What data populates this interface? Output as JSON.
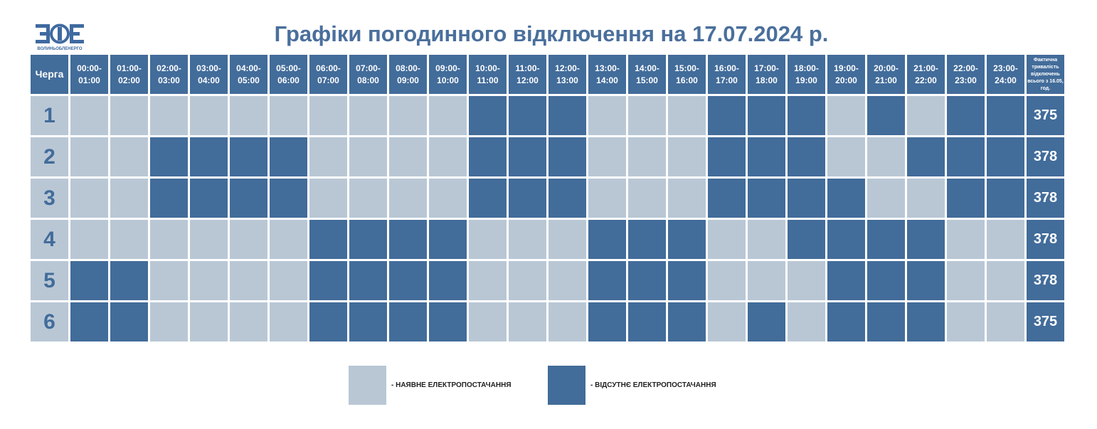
{
  "header": {
    "title": "Графіки погодинного відключення на 17.07.2024 р.",
    "logo_text": "ВОЛИНЬОБЛЕНЕРГО"
  },
  "colors": {
    "power_on": "#b9c7d5",
    "power_off": "#426c9a",
    "accent": "#4a6f9c"
  },
  "table": {
    "queue_header": "Черга",
    "total_header": "Фактична тривалість відключень всього з 16.05, год.",
    "hours": [
      "00:00-01:00",
      "01:00-02:00",
      "02:00-03:00",
      "03:00-04:00",
      "04:00-05:00",
      "05:00-06:00",
      "06:00-07:00",
      "07:00-08:00",
      "08:00-09:00",
      "09:00-10:00",
      "10:00-11:00",
      "11:00-12:00",
      "12:00-13:00",
      "13:00-14:00",
      "14:00-15:00",
      "15:00-16:00",
      "16:00-17:00",
      "17:00-18:00",
      "18:00-19:00",
      "19:00-20:00",
      "20:00-21:00",
      "21:00-22:00",
      "22:00-23:00",
      "23:00-24:00"
    ],
    "rows": [
      {
        "queue": "1",
        "total": "375",
        "off": [
          0,
          0,
          0,
          0,
          0,
          0,
          0,
          0,
          0,
          0,
          1,
          1,
          1,
          0,
          0,
          0,
          1,
          1,
          1,
          0,
          1,
          0,
          1,
          1
        ]
      },
      {
        "queue": "2",
        "total": "378",
        "off": [
          0,
          0,
          1,
          1,
          1,
          1,
          0,
          0,
          0,
          0,
          1,
          1,
          1,
          0,
          0,
          0,
          1,
          1,
          1,
          0,
          0,
          1,
          1,
          1
        ]
      },
      {
        "queue": "3",
        "total": "378",
        "off": [
          0,
          0,
          1,
          1,
          1,
          1,
          0,
          0,
          0,
          0,
          1,
          1,
          1,
          0,
          0,
          0,
          1,
          1,
          1,
          1,
          0,
          0,
          1,
          1
        ]
      },
      {
        "queue": "4",
        "total": "378",
        "off": [
          0,
          0,
          0,
          0,
          0,
          0,
          1,
          1,
          1,
          1,
          0,
          0,
          0,
          1,
          1,
          1,
          0,
          0,
          1,
          1,
          1,
          1,
          0,
          0
        ]
      },
      {
        "queue": "5",
        "total": "378",
        "off": [
          1,
          1,
          0,
          0,
          0,
          0,
          1,
          1,
          1,
          1,
          0,
          0,
          0,
          1,
          1,
          1,
          0,
          0,
          0,
          1,
          1,
          1,
          0,
          0
        ]
      },
      {
        "queue": "6",
        "total": "375",
        "off": [
          1,
          1,
          0,
          0,
          0,
          0,
          1,
          1,
          1,
          1,
          0,
          0,
          0,
          1,
          1,
          1,
          0,
          1,
          0,
          1,
          1,
          1,
          0,
          0
        ]
      }
    ]
  },
  "legend": {
    "on_label": "- НАЯВНЕ ЕЛЕКТРОПОСТАЧАННЯ",
    "off_label": "- ВІДСУТНЄ ЕЛЕКТРОПОСТАЧАННЯ"
  }
}
